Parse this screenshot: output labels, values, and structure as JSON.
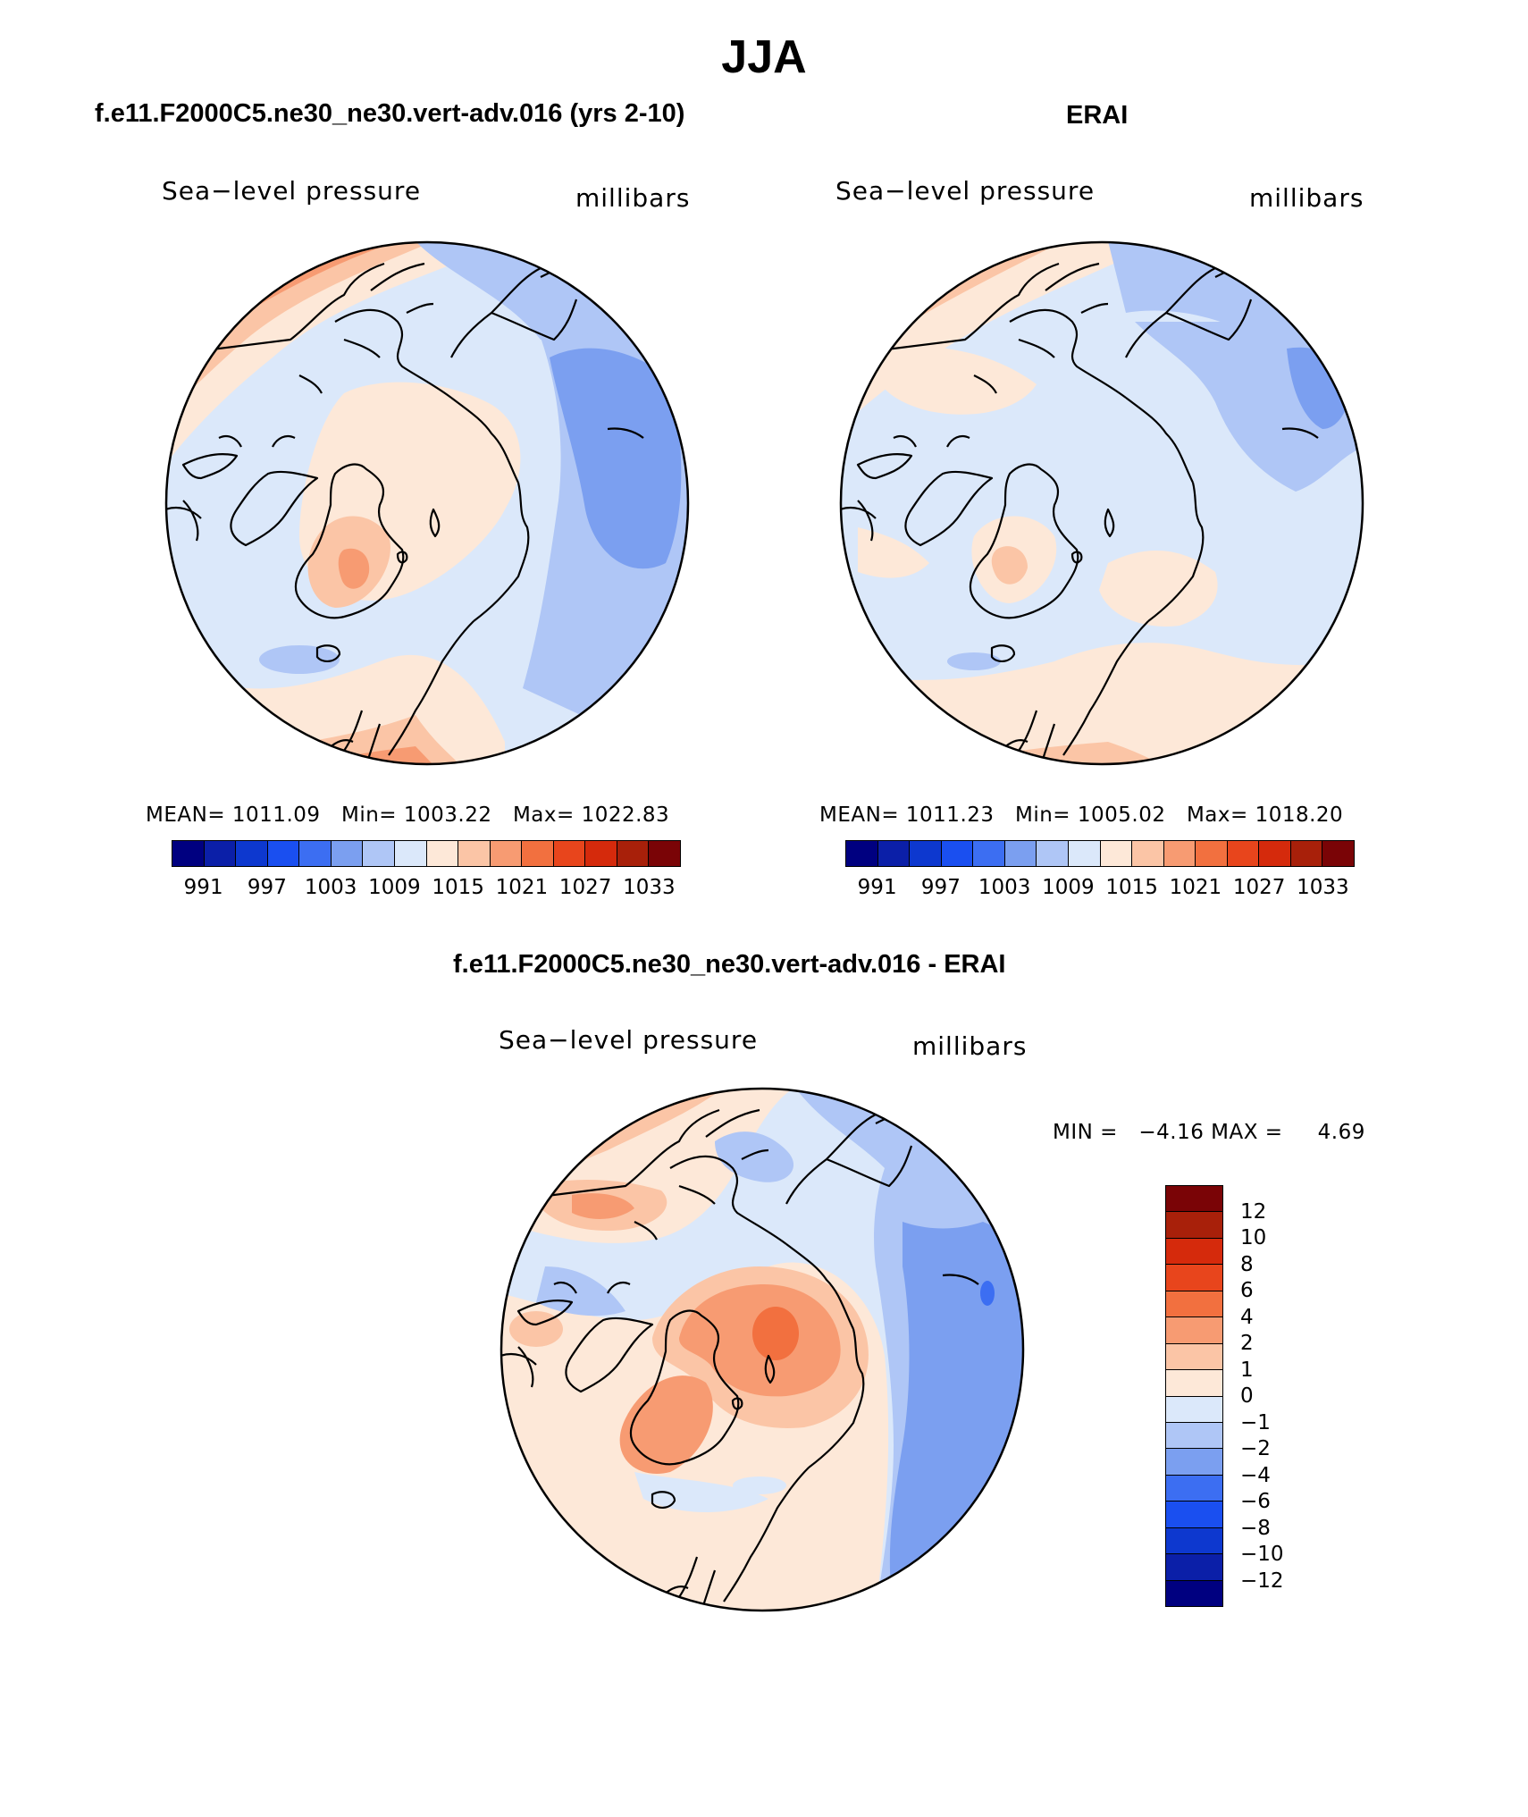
{
  "title": "JJA",
  "panels": {
    "model": {
      "title": "f.e11.F2000C5.ne30_ne30.vert-adv.016 (yrs 2-10)",
      "field_label": "Sea−level pressure",
      "units_label": "millibars",
      "stats": {
        "mean_label": "MEAN=",
        "mean": "1011.09",
        "min_label": "Min=",
        "min": "1003.22",
        "max_label": "Max=",
        "max": "1022.83"
      }
    },
    "obs": {
      "title": "ERAI",
      "field_label": "Sea−level pressure",
      "units_label": "millibars",
      "stats": {
        "mean_label": "MEAN=",
        "mean": "1011.23",
        "min_label": "Min=",
        "min": "1005.02",
        "max_label": "Max=",
        "max": "1018.20"
      }
    },
    "diff": {
      "title": "f.e11.F2000C5.ne30_ne30.vert-adv.016 - ERAI",
      "field_label": "Sea−level pressure",
      "units_label": "millibars",
      "stats": {
        "min_label": "MIN =",
        "min": "−4.16",
        "max_label": "MAX =",
        "max": "4.69"
      }
    }
  },
  "abs_colorbar": {
    "colors": [
      "#000080",
      "#0b1fa8",
      "#0d38cf",
      "#1a4ff0",
      "#3c6ef2",
      "#7b9ff0",
      "#afc6f6",
      "#dbe8fa",
      "#fde8d8",
      "#fbc5a6",
      "#f79b72",
      "#f2703f",
      "#e8451c",
      "#d52a0c",
      "#a8200a",
      "#7a0406"
    ],
    "ticks": [
      "991",
      "997",
      "1003",
      "1009",
      "1015",
      "1021",
      "1027",
      "1033"
    ]
  },
  "diff_colorbar": {
    "colors": [
      "#7a0406",
      "#a8200a",
      "#d52a0c",
      "#e8451c",
      "#f2703f",
      "#f79b72",
      "#fbc5a6",
      "#fde8d8",
      "#dbe8fa",
      "#afc6f6",
      "#7b9ff0",
      "#3c6ef2",
      "#1a4ff0",
      "#0d38cf",
      "#0b1fa8",
      "#000080"
    ],
    "ticks": [
      "12",
      "10",
      "8",
      "6",
      "4",
      "2",
      "1",
      "0",
      "−1",
      "−2",
      "−4",
      "−6",
      "−8",
      "−10",
      "−12"
    ]
  },
  "palette": {
    "ocean_light_blue": "#dbe8fa",
    "mid_blue": "#afc6f6",
    "blue": "#7b9ff0",
    "deep_blue": "#3c6ef2",
    "pale_orange": "#fde8d8",
    "light_orange": "#fbc5a6",
    "orange": "#f79b72",
    "dark_orange": "#f2703f",
    "coast": "#000000"
  }
}
